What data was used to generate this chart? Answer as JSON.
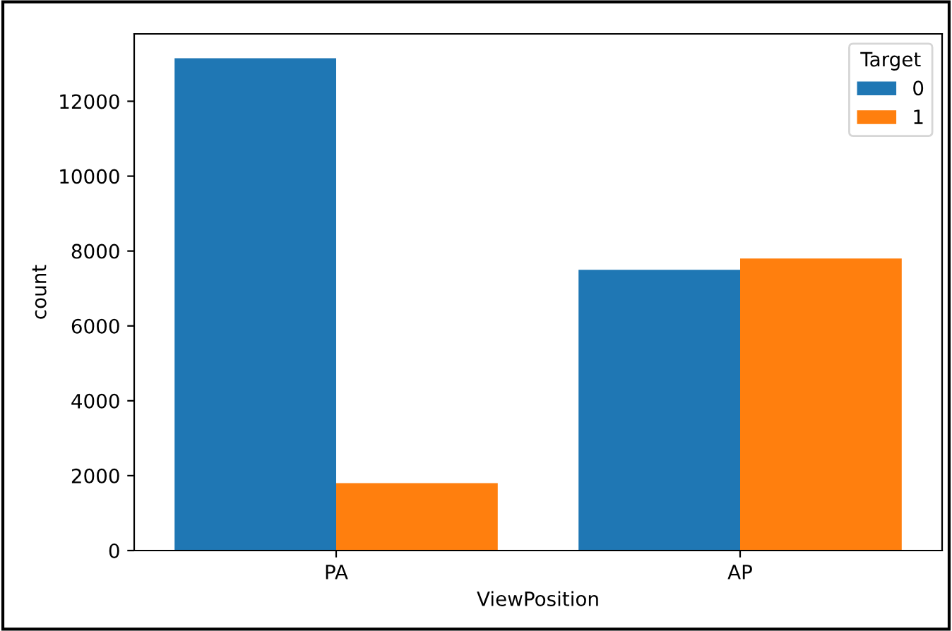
{
  "chart_data": {
    "type": "bar",
    "xlabel": "ViewPosition",
    "ylabel": "count",
    "legend_title": "Target",
    "categories": [
      "PA",
      "AP"
    ],
    "series": [
      {
        "name": "0",
        "color": "#1f77b4",
        "values": [
          13150,
          7500
        ]
      },
      {
        "name": "1",
        "color": "#ff7f0e",
        "values": [
          1800,
          7800
        ]
      }
    ],
    "ylim": [
      0,
      13800
    ],
    "yticks": [
      0,
      2000,
      4000,
      6000,
      8000,
      10000,
      12000
    ],
    "grid": false,
    "legend": "top right"
  }
}
